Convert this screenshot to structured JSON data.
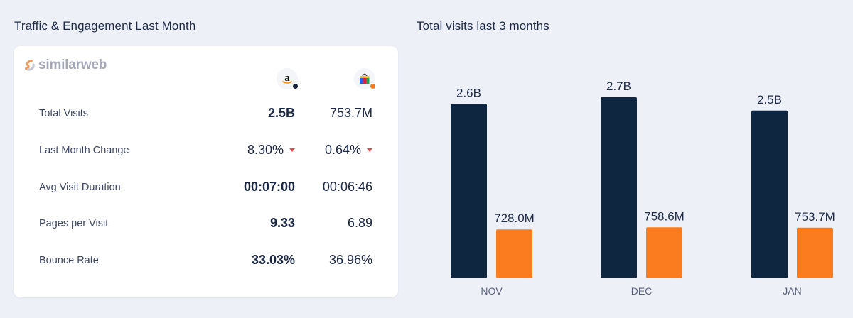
{
  "left_title": "Traffic & Engagement Last Month",
  "right_title": "Total visits last 3 months",
  "brand": "similarweb",
  "sites": [
    {
      "icon": "amazon-logo-icon",
      "dot_color": "#14213d"
    },
    {
      "icon": "shopping-bag-icon",
      "dot_color": "#fb7a1f"
    }
  ],
  "metrics": [
    {
      "label": "Total Visits",
      "a": "2.5B",
      "b": "753.7M",
      "a_bold": true,
      "caret": false
    },
    {
      "label": "Last Month Change",
      "a": "8.30%",
      "b": "0.64%",
      "a_bold": false,
      "caret": true
    },
    {
      "label": "Avg Visit Duration",
      "a": "00:07:00",
      "b": "00:06:46",
      "a_bold": true,
      "caret": false
    },
    {
      "label": "Pages per Visit",
      "a": "9.33",
      "b": "6.89",
      "a_bold": true,
      "caret": false
    },
    {
      "label": "Bounce Rate",
      "a": "33.03%",
      "b": "36.96%",
      "a_bold": true,
      "caret": false
    }
  ],
  "colors": {
    "dark": "#0f2640",
    "orange": "#fb7c1e",
    "caret": "#e5484d"
  },
  "chart_data": {
    "type": "bar",
    "title": "Total visits last 3 months",
    "categories": [
      "NOV",
      "DEC",
      "JAN"
    ],
    "series": [
      {
        "values": [
          2.6,
          2.7,
          2.5
        ],
        "labels": [
          "2.6B",
          "2.7B",
          "2.5B"
        ],
        "color": "#0f2640"
      },
      {
        "values": [
          0.728,
          0.7586,
          0.7537
        ],
        "labels": [
          "728.0M",
          "758.6M",
          "753.7M"
        ],
        "color": "#fb7c1e"
      }
    ],
    "unit": "billions",
    "grid": false
  }
}
